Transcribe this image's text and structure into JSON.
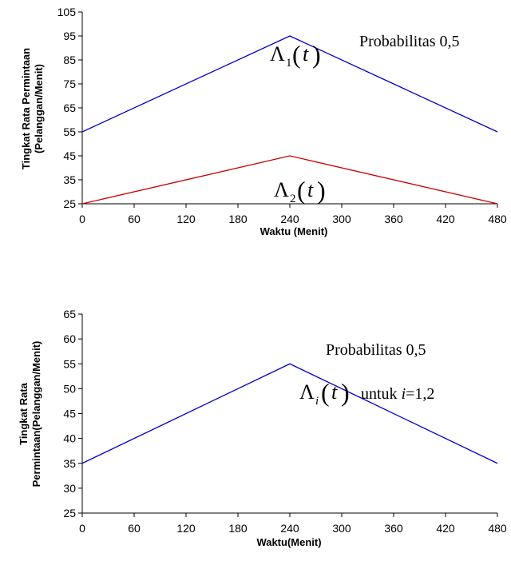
{
  "chart_data": [
    {
      "type": "line",
      "x": [
        0,
        240,
        480
      ],
      "series": [
        {
          "name": "Λ1(t)",
          "values": [
            55,
            95,
            55
          ],
          "color": "#0000cc"
        },
        {
          "name": "Λ2(t)",
          "values": [
            25,
            45,
            25
          ],
          "color": "#cc0000"
        }
      ],
      "xlabel": "Waktu (Menit)",
      "ylabel_lines": [
        "Tingkat Rata Permintaan",
        "(Pelanggan/Menit)"
      ],
      "xlim": [
        0,
        480
      ],
      "ylim": [
        25,
        105
      ],
      "xticks": [
        0,
        60,
        120,
        180,
        240,
        300,
        360,
        420,
        480
      ],
      "yticks": [
        25,
        35,
        45,
        55,
        65,
        75,
        85,
        95,
        105
      ],
      "annotation": "Probabilitas 0,5",
      "series_labels": [
        {
          "sym": "Λ",
          "sub": "1",
          "arg": "t"
        },
        {
          "sym": "Λ",
          "sub": "2",
          "arg": "t"
        }
      ],
      "grid": false
    },
    {
      "type": "line",
      "x": [
        0,
        240,
        480
      ],
      "series": [
        {
          "name": "Λi(t) untuk i=1,2",
          "values": [
            35,
            55,
            35
          ],
          "color": "#0000cc"
        }
      ],
      "xlabel": "Waktu(Menit)",
      "ylabel_lines": [
        "Tingkat Rata",
        "Permintaan(Pelanggan/Menit)"
      ],
      "xlim": [
        0,
        480
      ],
      "ylim": [
        25,
        65
      ],
      "xticks": [
        0,
        60,
        120,
        180,
        240,
        300,
        360,
        420,
        480
      ],
      "yticks": [
        25,
        30,
        35,
        40,
        45,
        50,
        55,
        60,
        65
      ],
      "annotation": "Probabilitas 0,5",
      "series_labels": [
        {
          "sym": "Λ",
          "sub": "i",
          "arg": "t",
          "suffix_pre": "untuk ",
          "suffix_var": "i",
          "suffix_post": "=1,2"
        }
      ],
      "grid": false
    }
  ]
}
